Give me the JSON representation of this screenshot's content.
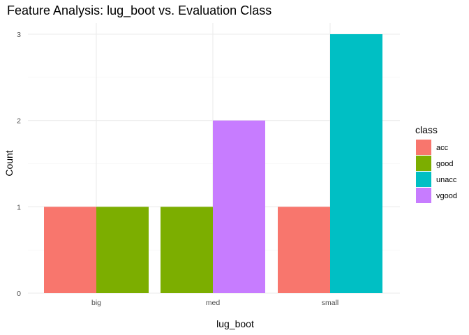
{
  "chart_data": {
    "type": "bar",
    "title": "Feature Analysis: lug_boot vs. Evaluation Class",
    "xlabel": "lug_boot",
    "ylabel": "Count",
    "categories": [
      "big",
      "med",
      "small"
    ],
    "ylim": [
      0,
      3
    ],
    "yticks": [
      0,
      1,
      2,
      3
    ],
    "legend": {
      "title": "class",
      "placement": "right",
      "entries": [
        {
          "name": "acc",
          "color": "#F8766D"
        },
        {
          "name": "good",
          "color": "#7CAE00"
        },
        {
          "name": "unacc",
          "color": "#00BFC4"
        },
        {
          "name": "vgood",
          "color": "#C77CFF"
        }
      ]
    },
    "bars": [
      {
        "category": "big",
        "class": "acc",
        "value": 1
      },
      {
        "category": "big",
        "class": "good",
        "value": 1
      },
      {
        "category": "med",
        "class": "good",
        "value": 1
      },
      {
        "category": "med",
        "class": "vgood",
        "value": 2
      },
      {
        "category": "small",
        "class": "acc",
        "value": 1
      },
      {
        "category": "small",
        "class": "unacc",
        "value": 3
      }
    ]
  }
}
